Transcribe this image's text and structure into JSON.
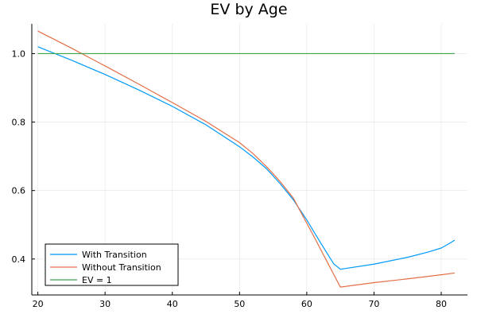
{
  "chart_data": {
    "type": "line",
    "title": "EV by Age",
    "xlabel": "",
    "ylabel": "",
    "xlim": [
      19.1,
      83.9
    ],
    "ylim": [
      0.295,
      1.087
    ],
    "xticks": [
      20,
      30,
      40,
      50,
      60,
      70,
      80
    ],
    "yticks": [
      0.4,
      0.6,
      0.8,
      1.0
    ],
    "ytick_labels": [
      "0.4",
      "0.6",
      "0.8",
      "1.0"
    ],
    "grid": true,
    "legend_position": "bottom-left",
    "series": [
      {
        "name": "With Transition",
        "color": "#009AFA",
        "x": [
          20,
          25,
          30,
          35,
          40,
          45,
          50,
          52,
          54,
          56,
          58,
          60,
          62,
          64,
          65,
          70,
          75,
          78,
          80,
          81,
          82
        ],
        "y": [
          1.02,
          0.981,
          0.939,
          0.894,
          0.846,
          0.792,
          0.728,
          0.698,
          0.664,
          0.621,
          0.573,
          0.514,
          0.449,
          0.386,
          0.37,
          0.385,
          0.405,
          0.42,
          0.432,
          0.443,
          0.455
        ]
      },
      {
        "name": "Without Transition",
        "color": "#E36F47",
        "x": [
          20,
          25,
          30,
          35,
          40,
          45,
          50,
          52,
          54,
          56,
          58,
          59,
          61,
          63,
          65,
          70,
          75,
          80,
          82
        ],
        "y": [
          1.066,
          1.016,
          0.964,
          0.911,
          0.857,
          0.802,
          0.74,
          0.708,
          0.67,
          0.627,
          0.578,
          0.541,
          0.468,
          0.393,
          0.318,
          0.331,
          0.342,
          0.354,
          0.359
        ]
      },
      {
        "name": "EV = 1",
        "color": "#3EA44E",
        "x": [
          20,
          82
        ],
        "y": [
          1.0,
          1.0
        ]
      }
    ]
  }
}
